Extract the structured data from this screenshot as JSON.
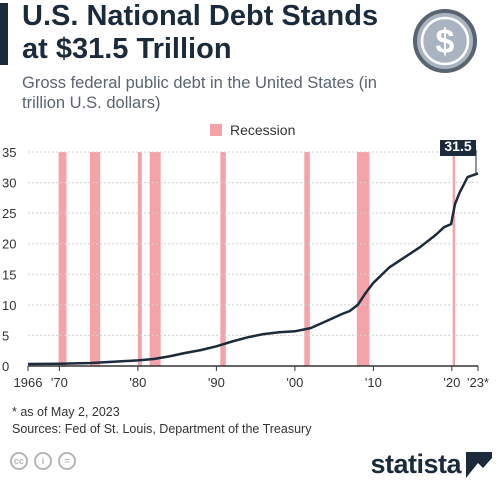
{
  "header": {
    "title": "U.S. National Debt Stands at $31.5 Trillion",
    "subtitle": "Gross federal public debt in the United States (in trillion U.S. dollars)",
    "icon": "dollar-coin-icon"
  },
  "legend": {
    "label": "Recession",
    "color": "#f4a3a8"
  },
  "callout": {
    "label": "31.5"
  },
  "footer": {
    "footnote": "* as of May 2, 2023",
    "source": "Sources: Fed of St. Louis, Department of the Treasury",
    "brand": "statista",
    "cc_icons": [
      "cc-icon",
      "by-icon",
      "nd-icon"
    ]
  },
  "colors": {
    "line": "#1c2b3c",
    "recession": "#f4a3a8",
    "grid": "#d0d0d0"
  },
  "chart_data": {
    "type": "line",
    "title": "U.S. National Debt Stands at $31.5 Trillion",
    "xlim": [
      1966,
      2023.33
    ],
    "ylim": [
      0,
      35
    ],
    "y_ticks": [
      0,
      5,
      10,
      15,
      20,
      25,
      30,
      35
    ],
    "x_ticks": [
      {
        "value": 1966,
        "label": "1966"
      },
      {
        "value": 1970,
        "label": "'70"
      },
      {
        "value": 1980,
        "label": "'80"
      },
      {
        "value": 1990,
        "label": "'90"
      },
      {
        "value": 2000,
        "label": "'00"
      },
      {
        "value": 2010,
        "label": "'10"
      },
      {
        "value": 2020,
        "label": "'20"
      },
      {
        "value": 2023.33,
        "label": "'23*"
      }
    ],
    "grid": true,
    "legend_position": "top",
    "recessions": [
      [
        1969.9,
        1970.9
      ],
      [
        1973.9,
        1975.2
      ],
      [
        1980.0,
        1980.5
      ],
      [
        1981.5,
        1982.9
      ],
      [
        1990.5,
        1991.2
      ],
      [
        2001.2,
        2001.9
      ],
      [
        2007.9,
        2009.5
      ],
      [
        2020.1,
        2020.4
      ]
    ],
    "series": [
      {
        "x": [
          1966,
          1968,
          1970,
          1972,
          1974,
          1976,
          1978,
          1980,
          1982,
          1984,
          1986,
          1988,
          1990,
          1992,
          1994,
          1996,
          1998,
          2000,
          2002,
          2004,
          2006,
          2007,
          2008,
          2009,
          2010,
          2012,
          2014,
          2016,
          2018,
          2019,
          2019.9,
          2020.4,
          2021,
          2022,
          2023.33
        ],
        "y": [
          0.32,
          0.35,
          0.37,
          0.43,
          0.49,
          0.63,
          0.78,
          0.91,
          1.14,
          1.57,
          2.12,
          2.6,
          3.23,
          4.0,
          4.69,
          5.22,
          5.53,
          5.67,
          6.2,
          7.35,
          8.5,
          9.0,
          10.0,
          11.9,
          13.6,
          16.1,
          17.8,
          19.5,
          21.5,
          22.7,
          23.2,
          26.5,
          28.4,
          30.9,
          31.5
        ]
      }
    ]
  }
}
